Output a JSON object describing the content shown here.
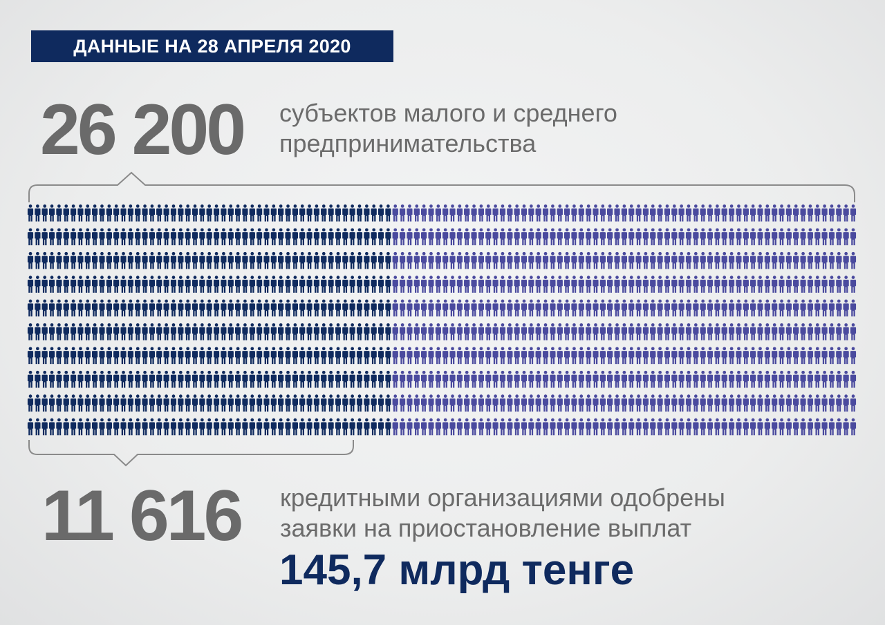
{
  "header": {
    "date_label": "ДАННЫЕ НА 28 АПРЕЛЯ 2020"
  },
  "total": {
    "number": "26 200",
    "description_line1": "субъектов малого и среднего",
    "description_line2": "предпринимательства"
  },
  "approved": {
    "number": "11 616",
    "description_line1": "кредитными организациями одобрены",
    "description_line2": "заявки на приостановление выплат",
    "amount": "145,7 млрд тенге"
  },
  "chart_data": {
    "type": "pictograph",
    "total_value": 26200,
    "highlighted_value": 11616,
    "colors": {
      "highlighted": "#0f2a5e",
      "remaining": "#4a4a9e",
      "bracket": "#8a8a8a"
    }
  }
}
